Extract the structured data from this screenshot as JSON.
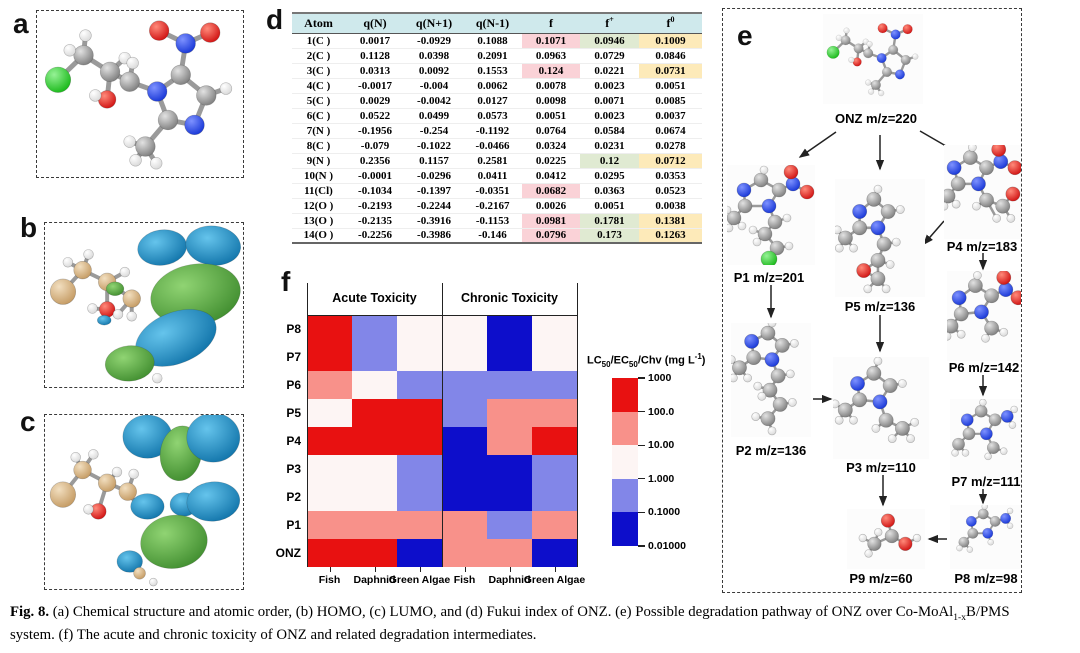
{
  "panel_labels": {
    "a": "a",
    "b": "b",
    "c": "c",
    "d": "d",
    "e": "e",
    "f": "f"
  },
  "fukui_table": {
    "headers": [
      {
        "text": "Atom"
      },
      {
        "text": "q(N)"
      },
      {
        "text": "q(N+1)"
      },
      {
        "text": "q(N-1)"
      },
      {
        "text": "f"
      },
      {
        "text": "f",
        "sup": "+"
      },
      {
        "text": "f",
        "sup": "0"
      }
    ],
    "rows": [
      [
        "1(C )",
        "0.0017",
        "-0.0929",
        "0.1088",
        "0.1071",
        "0.0946",
        "0.1009"
      ],
      [
        "2(C )",
        "0.1128",
        "0.0398",
        "0.2091",
        "0.0963",
        "0.0729",
        "0.0846"
      ],
      [
        "3(C )",
        "0.0313",
        "0.0092",
        "0.1553",
        "0.124",
        "0.0221",
        "0.0731"
      ],
      [
        "4(C )",
        "-0.0017",
        "-0.004",
        "0.0062",
        "0.0078",
        "0.0023",
        "0.0051"
      ],
      [
        "5(C )",
        "0.0029",
        "-0.0042",
        "0.0127",
        "0.0098",
        "0.0071",
        "0.0085"
      ],
      [
        "6(C )",
        "0.0522",
        "0.0499",
        "0.0573",
        "0.0051",
        "0.0023",
        "0.0037"
      ],
      [
        "7(N )",
        "-0.1956",
        "-0.254",
        "-0.1192",
        "0.0764",
        "0.0584",
        "0.0674"
      ],
      [
        "8(C )",
        "-0.079",
        "-0.1022",
        "-0.0466",
        "0.0324",
        "0.0231",
        "0.0278"
      ],
      [
        "9(N )",
        "0.2356",
        "0.1157",
        "0.2581",
        "0.0225",
        "0.12",
        "0.0712"
      ],
      [
        "10(N )",
        "-0.0001",
        "-0.0296",
        "0.0411",
        "0.0412",
        "0.0295",
        "0.0353"
      ],
      [
        "11(Cl)",
        "-0.1034",
        "-0.1397",
        "-0.0351",
        "0.0682",
        "0.0363",
        "0.0523"
      ],
      [
        "12(O )",
        "-0.2193",
        "-0.2244",
        "-0.2167",
        "0.0026",
        "0.0051",
        "0.0038"
      ],
      [
        "13(O )",
        "-0.2135",
        "-0.3916",
        "-0.1153",
        "0.0981",
        "0.1781",
        "0.1381"
      ],
      [
        "14(O )",
        "-0.2256",
        "-0.3986",
        "-0.146",
        "0.0796",
        "0.173",
        "0.1263"
      ]
    ],
    "highlights": {
      "4": [
        0,
        2,
        10,
        12,
        13
      ],
      "5": [
        0,
        8,
        12,
        13
      ],
      "6": [
        0,
        2,
        8,
        12,
        13
      ]
    },
    "highlight_colors": {
      "4": "#fad2d7",
      "5": "#e0ead2",
      "6": "#fdeab9"
    },
    "header_bg": "#cfe9ec"
  },
  "chart_data": {
    "type": "heatmap",
    "row_labels": [
      "P8",
      "P7",
      "P6",
      "P5",
      "P4",
      "P3",
      "P2",
      "P1",
      "ONZ"
    ],
    "col_groups": [
      "Acute Toxicity",
      "Chronic Toxicity"
    ],
    "col_labels": [
      "Fish",
      "Daphnid",
      "Green Algae",
      "Fish",
      "Daphnid",
      "Green Algae"
    ],
    "cells": [
      [
        "R",
        "LB",
        "W",
        "W",
        "DB",
        "W"
      ],
      [
        "R",
        "LB",
        "W",
        "W",
        "DB",
        "W"
      ],
      [
        "S",
        "W",
        "LB",
        "LB",
        "LB",
        "LB"
      ],
      [
        "W",
        "R",
        "R",
        "LB",
        "S",
        "S"
      ],
      [
        "R",
        "R",
        "R",
        "DB",
        "S",
        "R"
      ],
      [
        "W",
        "W",
        "LB",
        "DB",
        "DB",
        "LB"
      ],
      [
        "W",
        "W",
        "LB",
        "DB",
        "DB",
        "LB"
      ],
      [
        "S",
        "S",
        "S",
        "S",
        "LB",
        "S"
      ],
      [
        "R",
        "R",
        "DB",
        "S",
        "S",
        "DB"
      ]
    ],
    "level_colors": {
      "R": "#e81111",
      "S": "#f8918a",
      "W": "#fdf5f4",
      "LB": "#8286e8",
      "DB": "#0d0ecb"
    },
    "level_ranges": {
      "R": "100-1000",
      "S": "10-100",
      "W": "1-10",
      "LB": "0.1-1",
      "DB": "0.01-0.1"
    },
    "legend_title_parts": [
      {
        "t": "LC"
      },
      {
        "sub": "50"
      },
      {
        "t": "/EC"
      },
      {
        "sub": "50"
      },
      {
        "t": "/Chv (mg L"
      },
      {
        "sup": "-1"
      },
      {
        "t": ")"
      }
    ],
    "legend_ticks": [
      "1000",
      "100.0",
      "10.00",
      "1.000",
      "0.1000",
      "0.01000"
    ],
    "legend_segments": [
      "R",
      "S",
      "W",
      "LB",
      "DB"
    ]
  },
  "pathway": {
    "nodes": [
      {
        "id": "onz",
        "label": "ONZ m/z=220"
      },
      {
        "id": "p1",
        "label": "P1 m/z=201"
      },
      {
        "id": "p2",
        "label": "P2 m/z=136"
      },
      {
        "id": "p3",
        "label": "P3 m/z=110"
      },
      {
        "id": "p4",
        "label": "P4 m/z=183"
      },
      {
        "id": "p5",
        "label": "P5 m/z=136"
      },
      {
        "id": "p6",
        "label": "P6 m/z=142"
      },
      {
        "id": "p7",
        "label": "P7 m/z=111"
      },
      {
        "id": "p8",
        "label": "P8 m/z=98"
      },
      {
        "id": "p9",
        "label": "P9 m/z=60"
      }
    ]
  },
  "caption": {
    "parts": [
      {
        "b": "Fig. 8."
      },
      {
        "t": " (a) Chemical structure and atomic order, (b) HOMO, (c) LUMO, and (d) Fukui index of ONZ. (e) Possible degradation pathway of ONZ over Co-MoAl"
      },
      {
        "sub": "1-x"
      },
      {
        "t": "B/PMS"
      },
      {
        "br": true
      },
      {
        "t": "system. (f) The acute and chronic toxicity of ONZ and related degradation intermediates."
      }
    ]
  }
}
